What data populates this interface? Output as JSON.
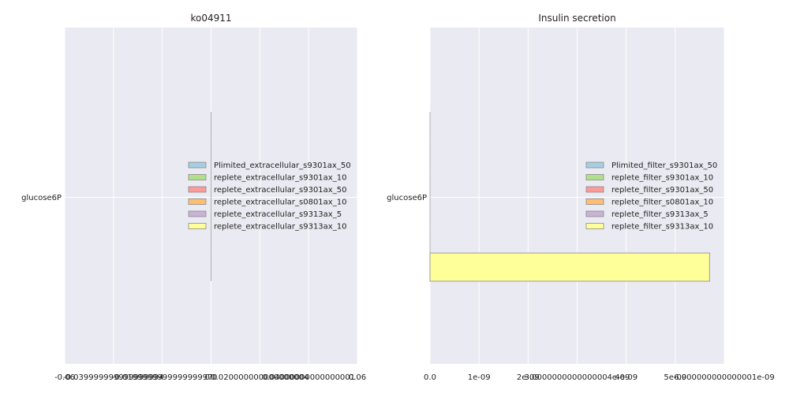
{
  "chart_data": [
    {
      "type": "bar",
      "orientation": "horizontal",
      "title": "ko04911",
      "xlabel": "",
      "ylabel": "",
      "xlim": [
        -0.06,
        0.06
      ],
      "x_tick_values": [
        -0.06,
        -0.04,
        -0.02,
        0.0,
        0.02,
        0.04,
        0.06
      ],
      "x_tick_labels": [
        "-0.06",
        "-0.039999999999999994",
        "-0.019999999999999997",
        "0.0",
        "0.020000000000000004",
        "0.04000000000000001",
        "0.06"
      ],
      "categories": [
        "glucose6P"
      ],
      "grid": true,
      "legend_position": "center-right",
      "series": [
        {
          "name": "Plimited_extracellular_s9301ax_50",
          "color": "#a6cee3",
          "values": [
            0
          ]
        },
        {
          "name": "replete_extracellular_s9301ax_10",
          "color": "#b2df8a",
          "values": [
            0
          ]
        },
        {
          "name": "replete_extracellular_s9301ax_50",
          "color": "#fb9a99",
          "values": [
            0
          ]
        },
        {
          "name": "replete_extracellular_s0801ax_10",
          "color": "#fdbf6f",
          "values": [
            0
          ]
        },
        {
          "name": "replete_extracellular_s9313ax_5",
          "color": "#cab2d6",
          "values": [
            0
          ]
        },
        {
          "name": "replete_extracellular_s9313ax_10",
          "color": "#ffff99",
          "values": [
            0
          ]
        }
      ]
    },
    {
      "type": "bar",
      "orientation": "horizontal",
      "title": "Insulin secretion",
      "xlabel": "",
      "ylabel": "",
      "xlim": [
        0,
        6e-09
      ],
      "x_tick_values": [
        0,
        1e-09,
        2e-09,
        3e-09,
        4e-09,
        5e-09,
        6e-09
      ],
      "x_tick_labels": [
        "0.0",
        "1e-09",
        "2e-09",
        "3.0000000000000004e-09",
        "4e-09",
        "5e-09",
        "6.000000000000001e-09"
      ],
      "categories": [
        "glucose6P"
      ],
      "grid": true,
      "legend_position": "center-right",
      "series": [
        {
          "name": "Plimited_filter_s9301ax_50",
          "color": "#a6cee3",
          "values": [
            0
          ]
        },
        {
          "name": "replete_filter_s9301ax_10",
          "color": "#b2df8a",
          "values": [
            0
          ]
        },
        {
          "name": "replete_filter_s9301ax_50",
          "color": "#fb9a99",
          "values": [
            0
          ]
        },
        {
          "name": "replete_filter_s0801ax_10",
          "color": "#fdbf6f",
          "values": [
            0
          ]
        },
        {
          "name": "replete_filter_s9313ax_5",
          "color": "#cab2d6",
          "values": [
            0
          ]
        },
        {
          "name": "replete_filter_s9313ax_10",
          "color": "#ffff99",
          "values": [
            5.7e-09
          ]
        }
      ]
    }
  ]
}
